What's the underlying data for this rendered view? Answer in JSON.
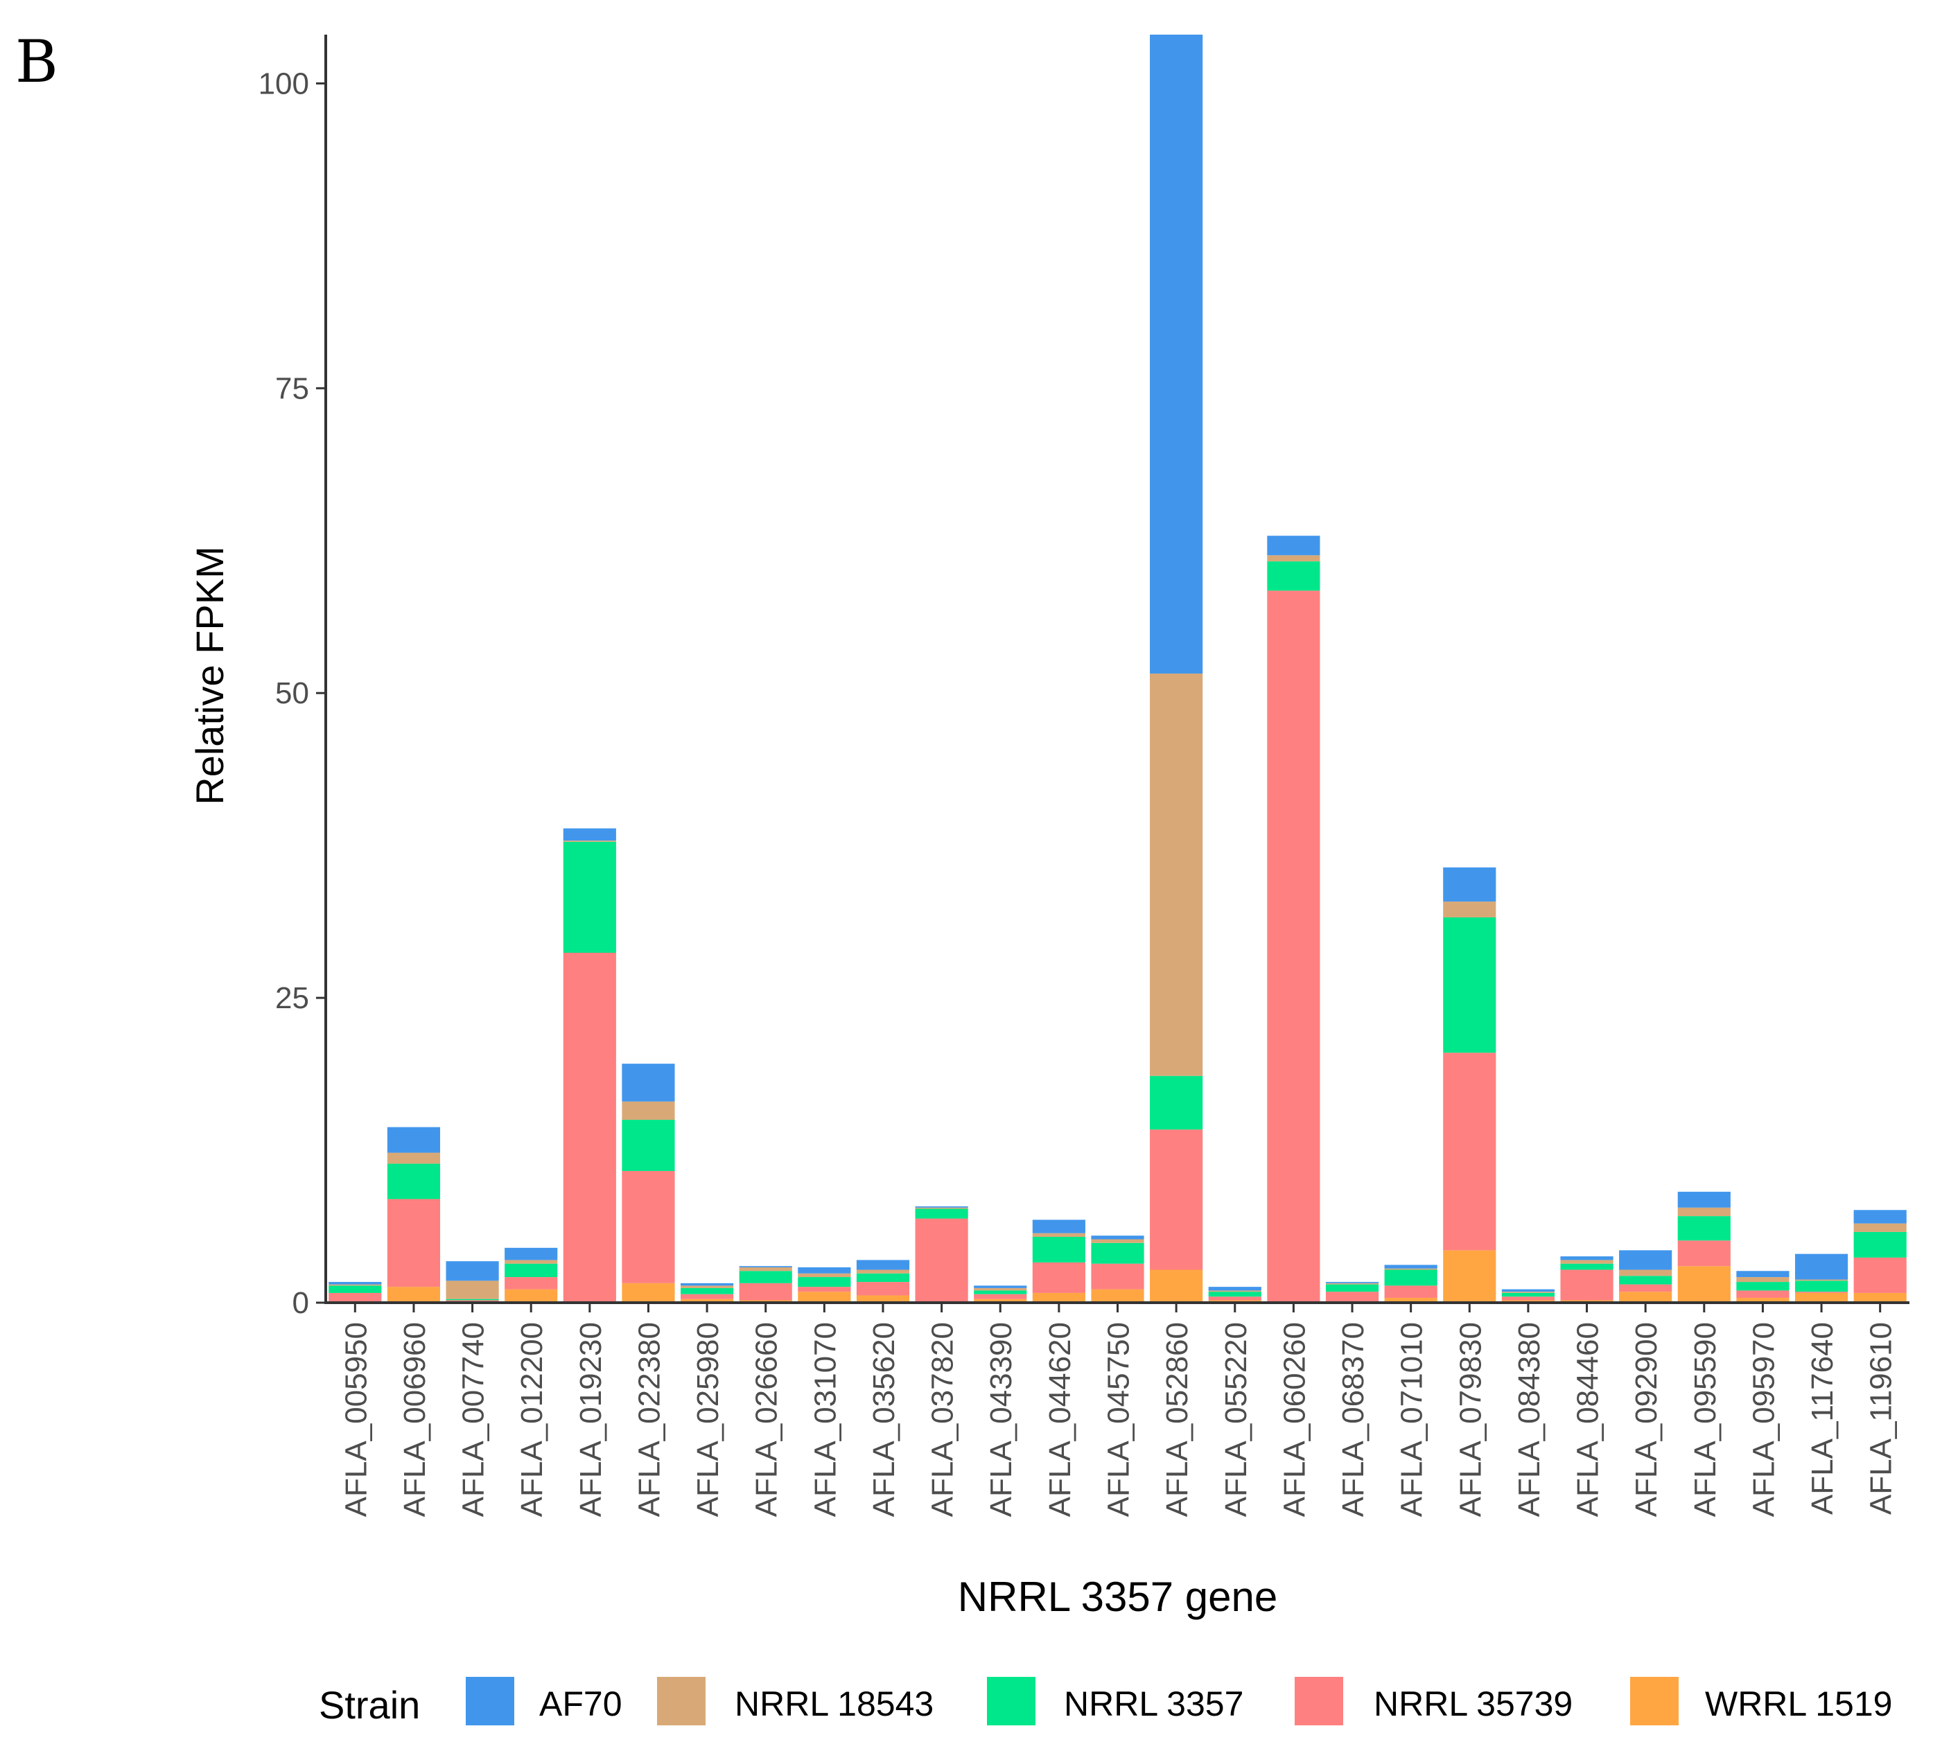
{
  "panel_label": "B",
  "chart_data": {
    "type": "bar",
    "stacked": true,
    "title": "",
    "xlabel": "NRRL 3357 gene",
    "ylabel": "Relative FPKM",
    "ylim": [
      0,
      104
    ],
    "yticks": [
      0,
      25,
      50,
      75,
      100
    ],
    "legend_title": "Strain",
    "legend_position": "bottom",
    "categories": [
      "AFLA_005950",
      "AFLA_006960",
      "AFLA_007740",
      "AFLA_012200",
      "AFLA_019230",
      "AFLA_022380",
      "AFLA_025980",
      "AFLA_026660",
      "AFLA_031070",
      "AFLA_035620",
      "AFLA_037820",
      "AFLA_043390",
      "AFLA_044620",
      "AFLA_045750",
      "AFLA_052860",
      "AFLA_055220",
      "AFLA_060260",
      "AFLA_068370",
      "AFLA_071010",
      "AFLA_079830",
      "AFLA_084380",
      "AFLA_084460",
      "AFLA_092900",
      "AFLA_095590",
      "AFLA_095970",
      "AFLA_117640",
      "AFLA_119610"
    ],
    "series": [
      {
        "name": "WRRL 1519",
        "color": "#FFA643",
        "values": [
          0.1,
          1.3,
          0.1,
          1.1,
          0.1,
          1.6,
          0.3,
          0.2,
          0.9,
          0.6,
          0.1,
          0.3,
          0.8,
          1.1,
          2.7,
          0.2,
          0.1,
          0.1,
          0.4,
          4.3,
          0.2,
          0.2,
          0.9,
          3.0,
          0.4,
          0.8,
          0.8
        ]
      },
      {
        "name": "NRRL 35739",
        "color": "#FF8080",
        "values": [
          0.7,
          7.2,
          0.1,
          1.0,
          28.6,
          9.2,
          0.4,
          1.4,
          0.4,
          1.1,
          6.8,
          0.4,
          2.5,
          2.1,
          11.5,
          0.3,
          58.3,
          0.8,
          1.0,
          16.2,
          0.3,
          2.5,
          0.6,
          2.1,
          0.6,
          0.1,
          2.9
        ]
      },
      {
        "name": "NRRL 3357",
        "color": "#00E68A",
        "values": [
          0.6,
          2.9,
          0.1,
          1.1,
          9.1,
          4.2,
          0.5,
          1.0,
          0.8,
          0.7,
          0.8,
          0.3,
          2.1,
          1.7,
          4.4,
          0.4,
          2.4,
          0.6,
          1.3,
          11.1,
          0.3,
          0.5,
          0.7,
          2.0,
          0.7,
          0.9,
          2.1
        ]
      },
      {
        "name": "NRRL 18543",
        "color": "#D8A977",
        "values": [
          0.1,
          0.9,
          1.5,
          0.3,
          0.1,
          1.5,
          0.2,
          0.3,
          0.3,
          0.3,
          0.1,
          0.2,
          0.3,
          0.3,
          33.0,
          0.1,
          0.5,
          0.1,
          0.1,
          1.3,
          0.1,
          0.3,
          0.5,
          0.7,
          0.4,
          0.1,
          0.7
        ]
      },
      {
        "name": "AF70",
        "color": "#4196EC",
        "values": [
          0.2,
          2.1,
          1.6,
          1.0,
          1.0,
          3.1,
          0.2,
          0.1,
          0.5,
          0.8,
          0.1,
          0.2,
          1.1,
          0.3,
          52.6,
          0.3,
          1.6,
          0.1,
          0.3,
          2.8,
          0.2,
          0.3,
          1.6,
          1.3,
          0.5,
          2.1,
          1.1
        ]
      }
    ]
  },
  "legend": [
    {
      "label": "AF70",
      "color": "#4196EC"
    },
    {
      "label": "NRRL 18543",
      "color": "#D8A977"
    },
    {
      "label": "NRRL 3357",
      "color": "#00E68A"
    },
    {
      "label": "NRRL 35739",
      "color": "#FF8080"
    },
    {
      "label": "WRRL 1519",
      "color": "#FFA643"
    }
  ]
}
